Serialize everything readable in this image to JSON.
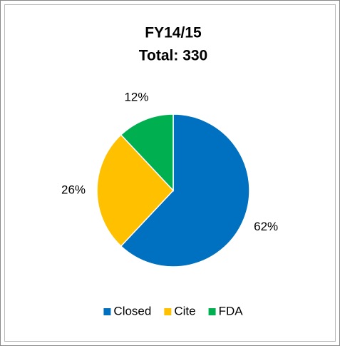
{
  "chart_data": {
    "type": "pie",
    "title": "FY14/15",
    "subtitle": "Total: 330",
    "categories": [
      "Closed",
      "Cite",
      "FDA"
    ],
    "values": [
      62,
      26,
      12
    ],
    "value_labels": [
      "62%",
      "26%",
      "12%"
    ],
    "colors": [
      "#0070c0",
      "#ffc000",
      "#00b050"
    ],
    "legend": "bottom"
  }
}
